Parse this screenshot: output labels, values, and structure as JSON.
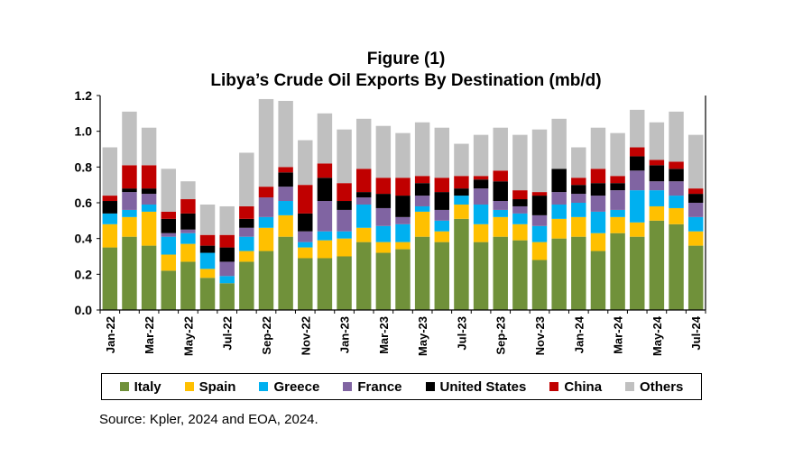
{
  "titles": {
    "figure": "Figure (1)",
    "main": "Libya’s Crude Oil Exports By Destination (mb/d)"
  },
  "source": "Source: Kpler, 2024 and EOA, 2024.",
  "chart_data": {
    "type": "bar",
    "stacked": true,
    "title": "Libya’s Crude Oil Exports By Destination (mb/d)",
    "xlabel": "",
    "ylabel": "",
    "ylim": [
      0,
      1.2
    ],
    "yticks": [
      "0.0",
      "0.2",
      "0.4",
      "0.6",
      "0.8",
      "1.0",
      "1.2"
    ],
    "xtick_labels": [
      "Jan-22",
      "Mar-22",
      "May-22",
      "Jul-22",
      "Sep-22",
      "Nov-22",
      "Jan-23",
      "Mar-23",
      "May-23",
      "Jul-23",
      "Sep-23",
      "Nov-23",
      "Jan-24",
      "Mar-24",
      "May-24",
      "Jul-24"
    ],
    "categories": [
      "Jan-22",
      "Feb-22",
      "Mar-22",
      "Apr-22",
      "May-22",
      "Jun-22",
      "Jul-22",
      "Aug-22",
      "Sep-22",
      "Oct-22",
      "Nov-22",
      "Dec-22",
      "Jan-23",
      "Feb-23",
      "Mar-23",
      "Apr-23",
      "May-23",
      "Jun-23",
      "Jul-23",
      "Aug-23",
      "Sep-23",
      "Oct-23",
      "Nov-23",
      "Dec-23",
      "Jan-24",
      "Feb-24",
      "Mar-24",
      "Apr-24",
      "May-24",
      "Jun-24",
      "Jul-24"
    ],
    "legend_position": "bottom",
    "series": [
      {
        "name": "Italy",
        "color": "#70913a",
        "values": [
          0.35,
          0.41,
          0.36,
          0.22,
          0.27,
          0.18,
          0.15,
          0.27,
          0.33,
          0.41,
          0.29,
          0.29,
          0.3,
          0.38,
          0.32,
          0.34,
          0.41,
          0.38,
          0.51,
          0.38,
          0.41,
          0.39,
          0.28,
          0.4,
          0.41,
          0.33,
          0.43,
          0.41,
          0.5,
          0.48,
          0.36
        ]
      },
      {
        "name": "Spain",
        "color": "#ffc000",
        "values": [
          0.13,
          0.11,
          0.19,
          0.09,
          0.1,
          0.05,
          0.0,
          0.06,
          0.13,
          0.12,
          0.06,
          0.1,
          0.1,
          0.08,
          0.06,
          0.04,
          0.14,
          0.06,
          0.08,
          0.1,
          0.11,
          0.09,
          0.1,
          0.11,
          0.11,
          0.1,
          0.09,
          0.08,
          0.08,
          0.09,
          0.08
        ]
      },
      {
        "name": "Greece",
        "color": "#00b0f0",
        "values": [
          0.06,
          0.04,
          0.04,
          0.1,
          0.06,
          0.09,
          0.04,
          0.08,
          0.06,
          0.08,
          0.03,
          0.05,
          0.04,
          0.13,
          0.09,
          0.1,
          0.03,
          0.06,
          0.05,
          0.11,
          0.04,
          0.06,
          0.09,
          0.08,
          0.08,
          0.12,
          0.04,
          0.18,
          0.09,
          0.07,
          0.08
        ]
      },
      {
        "name": "France",
        "color": "#8064a2",
        "values": [
          0.0,
          0.1,
          0.06,
          0.02,
          0.02,
          0.0,
          0.08,
          0.05,
          0.11,
          0.08,
          0.06,
          0.17,
          0.12,
          0.04,
          0.1,
          0.04,
          0.06,
          0.06,
          0.0,
          0.09,
          0.05,
          0.04,
          0.06,
          0.07,
          0.05,
          0.09,
          0.11,
          0.11,
          0.05,
          0.08,
          0.08
        ]
      },
      {
        "name": "United States",
        "color": "#000000",
        "values": [
          0.07,
          0.02,
          0.03,
          0.08,
          0.09,
          0.04,
          0.08,
          0.05,
          0.0,
          0.08,
          0.1,
          0.13,
          0.05,
          0.03,
          0.08,
          0.12,
          0.07,
          0.1,
          0.04,
          0.05,
          0.11,
          0.04,
          0.11,
          0.13,
          0.05,
          0.07,
          0.04,
          0.08,
          0.09,
          0.07,
          0.05
        ]
      },
      {
        "name": "China",
        "color": "#c00000",
        "values": [
          0.03,
          0.13,
          0.13,
          0.04,
          0.08,
          0.06,
          0.07,
          0.07,
          0.06,
          0.03,
          0.16,
          0.08,
          0.1,
          0.13,
          0.09,
          0.1,
          0.04,
          0.08,
          0.07,
          0.02,
          0.06,
          0.05,
          0.02,
          0.0,
          0.04,
          0.08,
          0.04,
          0.05,
          0.03,
          0.04,
          0.03
        ]
      },
      {
        "name": "Others",
        "color": "#c0c0c0",
        "values": [
          0.27,
          0.3,
          0.21,
          0.24,
          0.1,
          0.17,
          0.16,
          0.3,
          0.49,
          0.37,
          0.25,
          0.28,
          0.3,
          0.28,
          0.29,
          0.25,
          0.3,
          0.28,
          0.18,
          0.23,
          0.24,
          0.31,
          0.35,
          0.28,
          0.17,
          0.23,
          0.24,
          0.21,
          0.21,
          0.28,
          0.3
        ]
      }
    ]
  }
}
